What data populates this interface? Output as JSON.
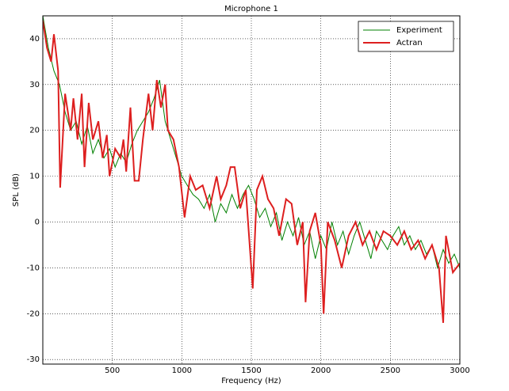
{
  "chart_data": {
    "type": "line",
    "title": "Microphone 1",
    "x_label": "Frequency (Hz)",
    "y_label": "SPL (dB)",
    "xlim": [
      0,
      3000
    ],
    "xticks": [
      500,
      1000,
      1500,
      2000,
      2500,
      3000
    ],
    "ylim": [
      -31,
      45
    ],
    "yticks": [
      -30,
      -20,
      -10,
      0,
      10,
      20,
      30,
      40
    ],
    "grid": true,
    "legend": "upper right",
    "series": [
      {
        "name": "Experiment",
        "color": "#008000",
        "width": 1,
        "x": [
          0,
          40,
          80,
          120,
          160,
          200,
          240,
          280,
          320,
          360,
          400,
          440,
          480,
          520,
          560,
          600,
          640,
          680,
          720,
          760,
          800,
          840,
          880,
          920,
          960,
          1000,
          1040,
          1080,
          1120,
          1160,
          1200,
          1240,
          1280,
          1320,
          1360,
          1400,
          1440,
          1480,
          1520,
          1560,
          1600,
          1640,
          1680,
          1720,
          1760,
          1800,
          1840,
          1880,
          1920,
          1960,
          2000,
          2040,
          2080,
          2120,
          2160,
          2200,
          2240,
          2280,
          2320,
          2360,
          2400,
          2440,
          2480,
          2520,
          2560,
          2600,
          2640,
          2680,
          2720,
          2760,
          2800,
          2840,
          2880,
          2920,
          2960,
          3000
        ],
        "values": [
          45,
          38,
          33,
          30,
          24,
          20,
          22,
          17,
          21,
          15,
          18,
          14,
          16,
          12,
          15,
          13,
          17,
          20,
          22,
          24,
          27,
          31,
          22,
          18,
          14,
          10,
          8,
          6,
          5,
          3,
          6,
          0,
          4,
          2,
          6,
          3,
          6,
          8,
          5,
          1,
          3,
          -1,
          2,
          -4,
          0,
          -3,
          1,
          -5,
          -2,
          -8,
          -3,
          -6,
          0,
          -5,
          -2,
          -7,
          -3,
          0,
          -4,
          -8,
          -2,
          -4,
          -6,
          -3,
          -1,
          -5,
          -3,
          -6,
          -4,
          -7,
          -5,
          -10,
          -6,
          -9,
          -7,
          -10
        ]
      },
      {
        "name": "Actran",
        "color": "#dd1f1f",
        "width": 2,
        "x": [
          0,
          30,
          60,
          80,
          110,
          125,
          160,
          200,
          220,
          250,
          280,
          300,
          330,
          360,
          400,
          430,
          460,
          480,
          520,
          560,
          580,
          600,
          630,
          660,
          690,
          720,
          760,
          790,
          820,
          850,
          880,
          900,
          940,
          980,
          1020,
          1060,
          1100,
          1150,
          1200,
          1250,
          1280,
          1320,
          1350,
          1380,
          1420,
          1460,
          1510,
          1540,
          1580,
          1620,
          1660,
          1700,
          1750,
          1790,
          1830,
          1870,
          1890,
          1920,
          1960,
          2000,
          2020,
          2050,
          2100,
          2150,
          2200,
          2250,
          2300,
          2350,
          2400,
          2450,
          2500,
          2550,
          2600,
          2650,
          2700,
          2750,
          2800,
          2850,
          2880,
          2900,
          2950,
          3000
        ],
        "values": [
          44,
          38,
          35,
          41,
          33,
          7.5,
          28,
          20,
          27,
          18,
          28,
          12,
          26,
          18,
          22,
          14,
          19,
          10,
          16,
          14,
          18,
          11,
          25,
          9,
          9,
          18,
          28,
          20,
          31,
          25,
          30,
          20,
          18,
          12,
          1,
          10,
          7,
          8,
          3,
          10,
          5,
          8,
          12,
          12,
          3,
          7,
          -14.5,
          7,
          10,
          5,
          3,
          -3,
          5,
          4,
          -5,
          0,
          -17.5,
          -2,
          2,
          -5,
          -20,
          0,
          -4,
          -10,
          -3,
          0,
          -5,
          -2,
          -6,
          -2,
          -3,
          -5,
          -2,
          -6,
          -4,
          -8,
          -5,
          -10,
          -22,
          -3,
          -11,
          -9
        ]
      }
    ]
  }
}
